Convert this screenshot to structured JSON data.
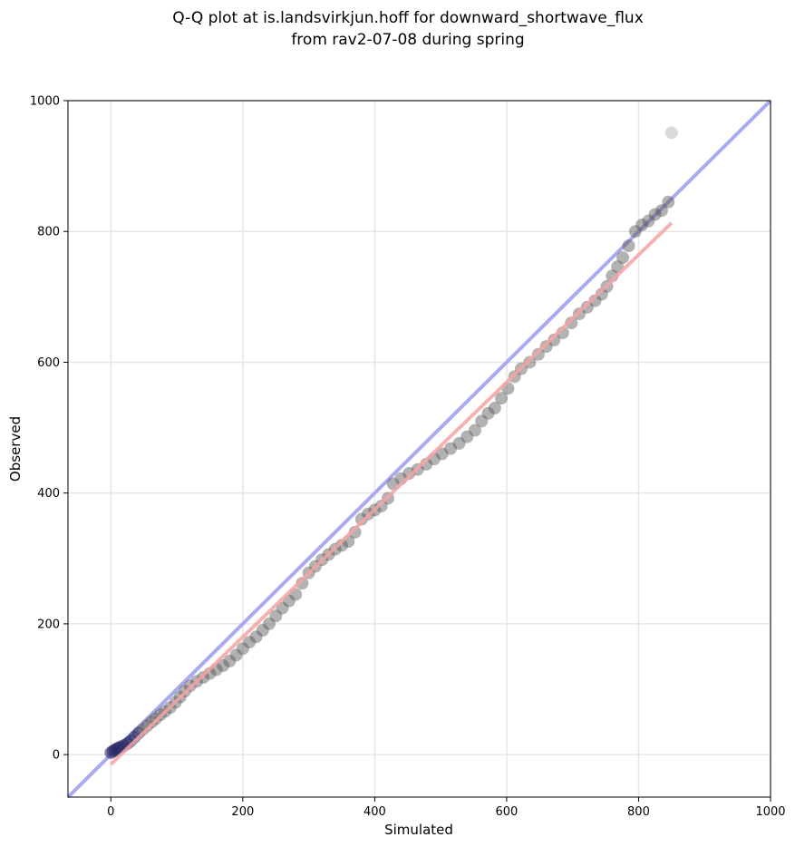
{
  "chart_data": {
    "type": "scatter",
    "title": "Q-Q plot at is.landsvirkjun.hoff for downward_shortwave_flux",
    "subtitle": "from rav2-07-08 during spring",
    "xlabel": "Simulated",
    "ylabel": "Observed",
    "xlim": [
      -65,
      1000
    ],
    "ylim": [
      -65,
      1000
    ],
    "xticks": [
      0,
      200,
      400,
      600,
      800,
      1000
    ],
    "yticks": [
      0,
      200,
      400,
      600,
      800,
      1000
    ],
    "grid": true,
    "colors": {
      "points": "#555555",
      "identity_line": "#aaaaf0",
      "fit_line": "#f4a4a4",
      "low_quantile_points": "#2a2a66",
      "fit_overlap_points": "#7a2a2a"
    },
    "lines": {
      "identity": {
        "x": [
          -65,
          1000
        ],
        "y": [
          -65,
          1000
        ]
      },
      "fit": {
        "x": [
          0,
          850
        ],
        "y": [
          -15,
          813
        ]
      }
    },
    "series": [
      {
        "points": [
          {
            "x": 0,
            "y": 3
          },
          {
            "x": 3,
            "y": 5
          },
          {
            "x": 6,
            "y": 7
          },
          {
            "x": 9,
            "y": 9
          },
          {
            "x": 12,
            "y": 10
          },
          {
            "x": 15,
            "y": 12
          },
          {
            "x": 20,
            "y": 14
          },
          {
            "x": 25,
            "y": 17
          },
          {
            "x": 30,
            "y": 21
          },
          {
            "x": 36,
            "y": 27
          },
          {
            "x": 42,
            "y": 33
          },
          {
            "x": 48,
            "y": 38
          },
          {
            "x": 55,
            "y": 44
          },
          {
            "x": 62,
            "y": 50
          },
          {
            "x": 68,
            "y": 55
          },
          {
            "x": 75,
            "y": 61
          },
          {
            "x": 82,
            "y": 66
          },
          {
            "x": 90,
            "y": 72
          },
          {
            "x": 98,
            "y": 80
          },
          {
            "x": 105,
            "y": 88
          },
          {
            "x": 112,
            "y": 97
          },
          {
            "x": 120,
            "y": 105
          },
          {
            "x": 130,
            "y": 112
          },
          {
            "x": 140,
            "y": 118
          },
          {
            "x": 150,
            "y": 124
          },
          {
            "x": 160,
            "y": 130
          },
          {
            "x": 170,
            "y": 136
          },
          {
            "x": 180,
            "y": 143
          },
          {
            "x": 190,
            "y": 152
          },
          {
            "x": 200,
            "y": 162
          },
          {
            "x": 210,
            "y": 172
          },
          {
            "x": 220,
            "y": 180
          },
          {
            "x": 230,
            "y": 190
          },
          {
            "x": 240,
            "y": 200
          },
          {
            "x": 250,
            "y": 212
          },
          {
            "x": 260,
            "y": 224
          },
          {
            "x": 270,
            "y": 235
          },
          {
            "x": 280,
            "y": 245
          },
          {
            "x": 290,
            "y": 262
          },
          {
            "x": 300,
            "y": 278
          },
          {
            "x": 310,
            "y": 288
          },
          {
            "x": 320,
            "y": 298
          },
          {
            "x": 330,
            "y": 306
          },
          {
            "x": 340,
            "y": 314
          },
          {
            "x": 350,
            "y": 320
          },
          {
            "x": 360,
            "y": 326
          },
          {
            "x": 370,
            "y": 340
          },
          {
            "x": 380,
            "y": 360
          },
          {
            "x": 390,
            "y": 368
          },
          {
            "x": 400,
            "y": 374
          },
          {
            "x": 410,
            "y": 380
          },
          {
            "x": 420,
            "y": 392
          },
          {
            "x": 428,
            "y": 414
          },
          {
            "x": 440,
            "y": 422
          },
          {
            "x": 452,
            "y": 430
          },
          {
            "x": 465,
            "y": 436
          },
          {
            "x": 478,
            "y": 444
          },
          {
            "x": 490,
            "y": 452
          },
          {
            "x": 502,
            "y": 460
          },
          {
            "x": 515,
            "y": 468
          },
          {
            "x": 528,
            "y": 476
          },
          {
            "x": 540,
            "y": 486
          },
          {
            "x": 552,
            "y": 496
          },
          {
            "x": 562,
            "y": 510
          },
          {
            "x": 572,
            "y": 522
          },
          {
            "x": 582,
            "y": 530
          },
          {
            "x": 592,
            "y": 545
          },
          {
            "x": 602,
            "y": 560
          },
          {
            "x": 612,
            "y": 578
          },
          {
            "x": 622,
            "y": 590
          },
          {
            "x": 635,
            "y": 600
          },
          {
            "x": 648,
            "y": 612
          },
          {
            "x": 660,
            "y": 624
          },
          {
            "x": 672,
            "y": 634
          },
          {
            "x": 685,
            "y": 645
          },
          {
            "x": 698,
            "y": 660
          },
          {
            "x": 710,
            "y": 674
          },
          {
            "x": 722,
            "y": 684
          },
          {
            "x": 734,
            "y": 694
          },
          {
            "x": 744,
            "y": 704
          },
          {
            "x": 752,
            "y": 716
          },
          {
            "x": 760,
            "y": 732
          },
          {
            "x": 768,
            "y": 746
          },
          {
            "x": 776,
            "y": 760
          },
          {
            "x": 785,
            "y": 778
          },
          {
            "x": 795,
            "y": 800
          },
          {
            "x": 805,
            "y": 810
          },
          {
            "x": 815,
            "y": 816
          },
          {
            "x": 825,
            "y": 826
          },
          {
            "x": 835,
            "y": 832
          },
          {
            "x": 845,
            "y": 845
          },
          {
            "x": 850,
            "y": 951
          }
        ]
      }
    ]
  }
}
